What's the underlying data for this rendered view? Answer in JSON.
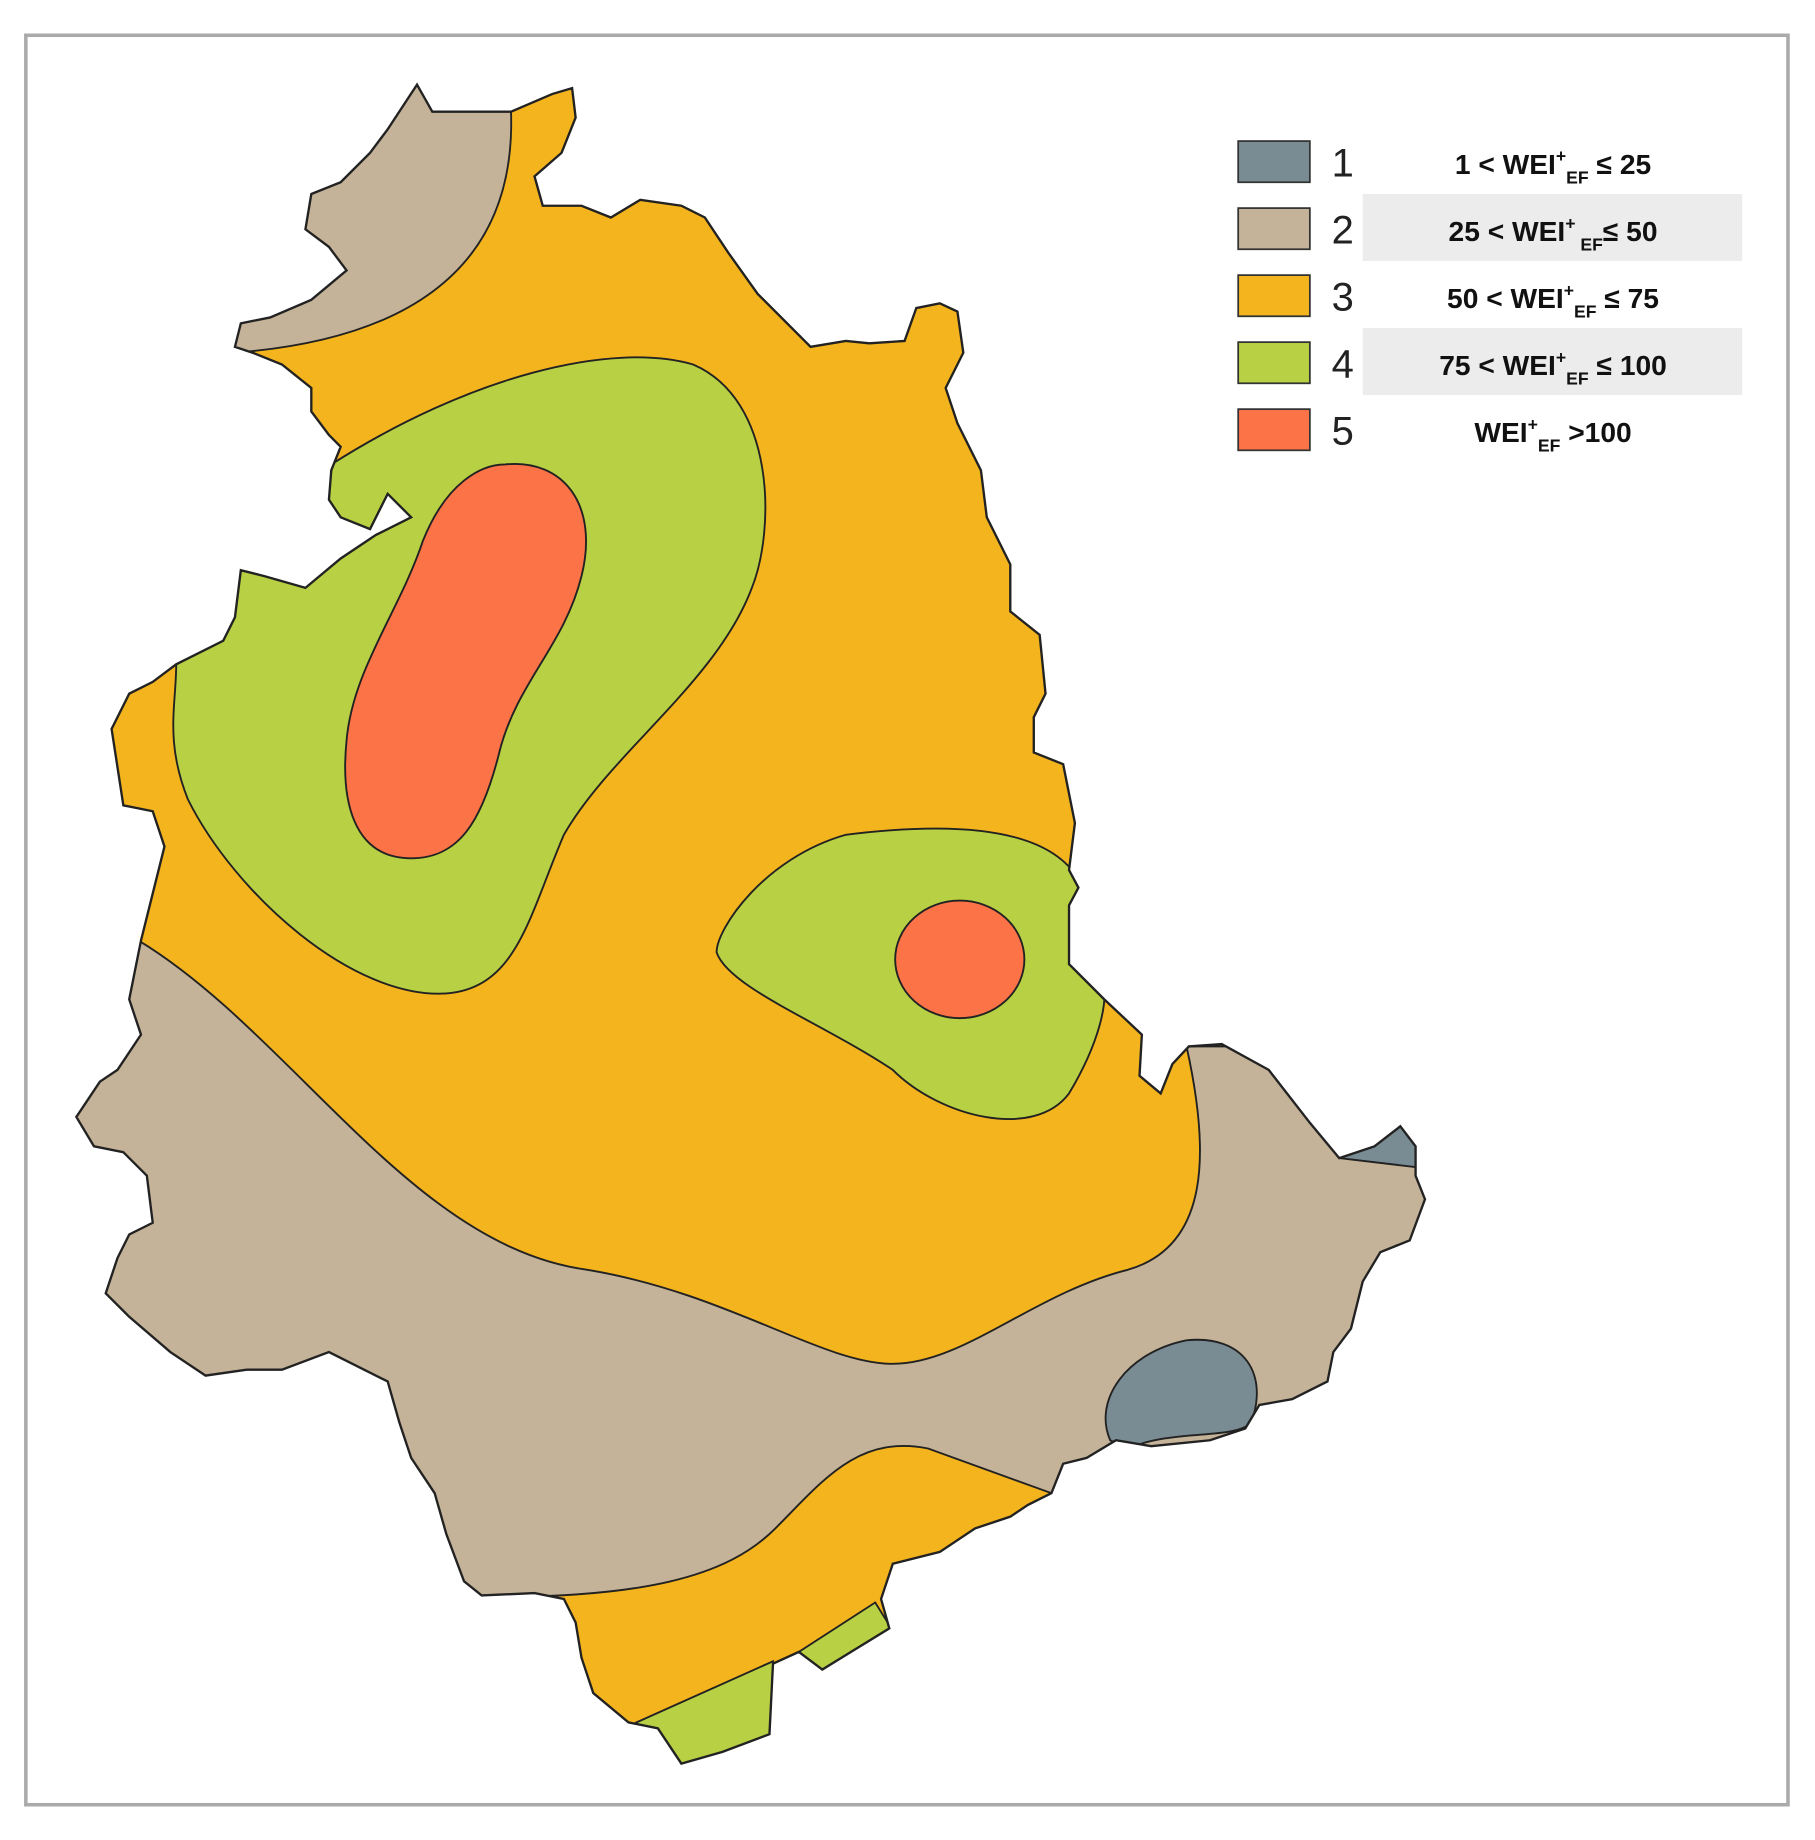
{
  "legend": {
    "items": [
      {
        "class": "1",
        "color": "#7a8c93",
        "label": [
          "1 < WEI",
          "+",
          "EF",
          " ≤ 25"
        ]
      },
      {
        "class": "2",
        "color": "#c4b398",
        "label": [
          "25 < WEI",
          "+",
          " EF",
          "≤ 50"
        ]
      },
      {
        "class": "3",
        "color": "#f4b41e",
        "label": [
          "50 < WEI",
          "+",
          "EF",
          " ≤ 75"
        ]
      },
      {
        "class": "4",
        "color": "#b8d043",
        "label": [
          "75 < WEI",
          "+",
          "EF",
          " ≤ 100"
        ]
      },
      {
        "class": "5",
        "color": "#fd7348",
        "label": [
          "WEI",
          "+",
          "EF",
          " >100"
        ]
      }
    ]
  }
}
